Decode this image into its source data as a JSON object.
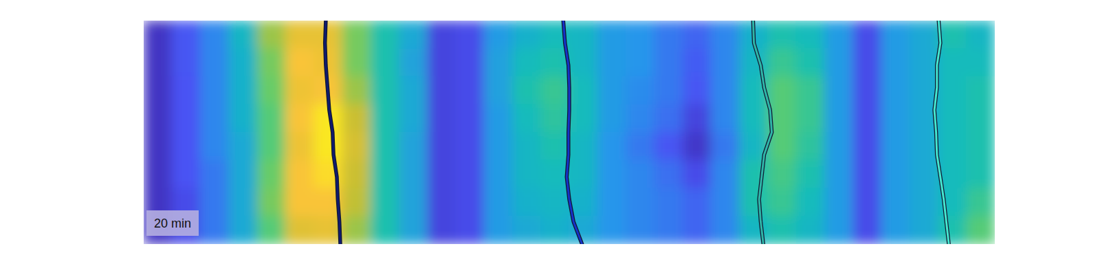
{
  "chart_data": {
    "type": "heatmap",
    "annotation": "20 min",
    "tick_labels": false,
    "xlim": [
      0,
      1
    ],
    "ylim": [
      0,
      10
    ],
    "zlim": [
      0,
      1
    ],
    "cells": [
      [
        0.05,
        0.15,
        0.25,
        0.4,
        0.65,
        0.8,
        0.8,
        0.6,
        0.45,
        0.35,
        0.1,
        0.12,
        0.3,
        0.38,
        0.42,
        0.4,
        0.3,
        0.28,
        0.22,
        0.18,
        0.25,
        0.38,
        0.45,
        0.42,
        0.3,
        0.12,
        0.3,
        0.35,
        0.45,
        0.4
      ],
      [
        0.05,
        0.15,
        0.25,
        0.38,
        0.6,
        0.85,
        0.82,
        0.6,
        0.45,
        0.33,
        0.1,
        0.12,
        0.32,
        0.42,
        0.45,
        0.4,
        0.3,
        0.28,
        0.22,
        0.16,
        0.25,
        0.4,
        0.5,
        0.45,
        0.3,
        0.12,
        0.3,
        0.35,
        0.42,
        0.42
      ],
      [
        0.05,
        0.14,
        0.25,
        0.38,
        0.58,
        0.82,
        0.85,
        0.65,
        0.45,
        0.35,
        0.1,
        0.12,
        0.32,
        0.45,
        0.5,
        0.42,
        0.3,
        0.26,
        0.22,
        0.15,
        0.25,
        0.42,
        0.55,
        0.5,
        0.3,
        0.12,
        0.3,
        0.35,
        0.42,
        0.45
      ],
      [
        0.05,
        0.14,
        0.25,
        0.38,
        0.55,
        0.85,
        0.95,
        0.72,
        0.45,
        0.35,
        0.1,
        0.12,
        0.3,
        0.42,
        0.48,
        0.42,
        0.3,
        0.25,
        0.2,
        0.1,
        0.25,
        0.42,
        0.55,
        0.5,
        0.3,
        0.12,
        0.3,
        0.35,
        0.42,
        0.45
      ],
      [
        0.05,
        0.14,
        0.25,
        0.35,
        0.55,
        0.82,
        0.95,
        0.75,
        0.45,
        0.33,
        0.1,
        0.12,
        0.3,
        0.4,
        0.45,
        0.4,
        0.28,
        0.22,
        0.15,
        0.06,
        0.22,
        0.4,
        0.55,
        0.48,
        0.3,
        0.12,
        0.3,
        0.35,
        0.42,
        0.45
      ],
      [
        0.05,
        0.14,
        0.22,
        0.35,
        0.58,
        0.85,
        0.92,
        0.72,
        0.45,
        0.33,
        0.1,
        0.12,
        0.3,
        0.4,
        0.42,
        0.4,
        0.28,
        0.25,
        0.2,
        0.12,
        0.25,
        0.45,
        0.52,
        0.45,
        0.3,
        0.12,
        0.3,
        0.35,
        0.42,
        0.45
      ],
      [
        0.05,
        0.12,
        0.22,
        0.35,
        0.6,
        0.85,
        0.85,
        0.7,
        0.45,
        0.33,
        0.1,
        0.12,
        0.3,
        0.38,
        0.4,
        0.38,
        0.28,
        0.25,
        0.22,
        0.18,
        0.25,
        0.45,
        0.5,
        0.42,
        0.3,
        0.12,
        0.3,
        0.35,
        0.42,
        0.5
      ],
      [
        0.05,
        0.12,
        0.22,
        0.35,
        0.55,
        0.78,
        0.8,
        0.65,
        0.45,
        0.33,
        0.1,
        0.12,
        0.3,
        0.35,
        0.38,
        0.35,
        0.28,
        0.25,
        0.22,
        0.18,
        0.25,
        0.4,
        0.45,
        0.4,
        0.3,
        0.12,
        0.3,
        0.35,
        0.45,
        0.55
      ]
    ],
    "series": [
      {
        "color": "#101a70",
        "line_style": "solid",
        "values": [
          0,
          1,
          2,
          3,
          4,
          5,
          6,
          7,
          8,
          9,
          10
        ],
        "x": [
          0.214,
          0.213,
          0.214,
          0.216,
          0.218,
          0.222,
          0.223,
          0.227,
          0.228,
          0.23,
          0.231
        ]
      },
      {
        "color": "#1632c8",
        "line_style": "solid",
        "values": [
          0,
          1,
          2,
          3,
          4,
          5,
          6,
          7,
          8,
          9,
          10
        ],
        "x": [
          0.493,
          0.495,
          0.499,
          0.5,
          0.5,
          0.499,
          0.499,
          0.497,
          0.5,
          0.505,
          0.515
        ]
      },
      {
        "color": "#2fb5a8",
        "line_style": "solid",
        "values": [
          0,
          1,
          2,
          3,
          4,
          5,
          6,
          7,
          8,
          9,
          10
        ],
        "x": [
          0.716,
          0.717,
          0.725,
          0.729,
          0.736,
          0.738,
          0.729,
          0.726,
          0.723,
          0.725,
          0.728
        ]
      },
      {
        "color": "#45e6cf",
        "line_style": "solid",
        "values": [
          0,
          1,
          2,
          3,
          4,
          5,
          6,
          7,
          8,
          9,
          10
        ],
        "x": [
          0.934,
          0.936,
          0.932,
          0.932,
          0.929,
          0.931,
          0.932,
          0.936,
          0.94,
          0.943,
          0.946
        ]
      }
    ]
  }
}
